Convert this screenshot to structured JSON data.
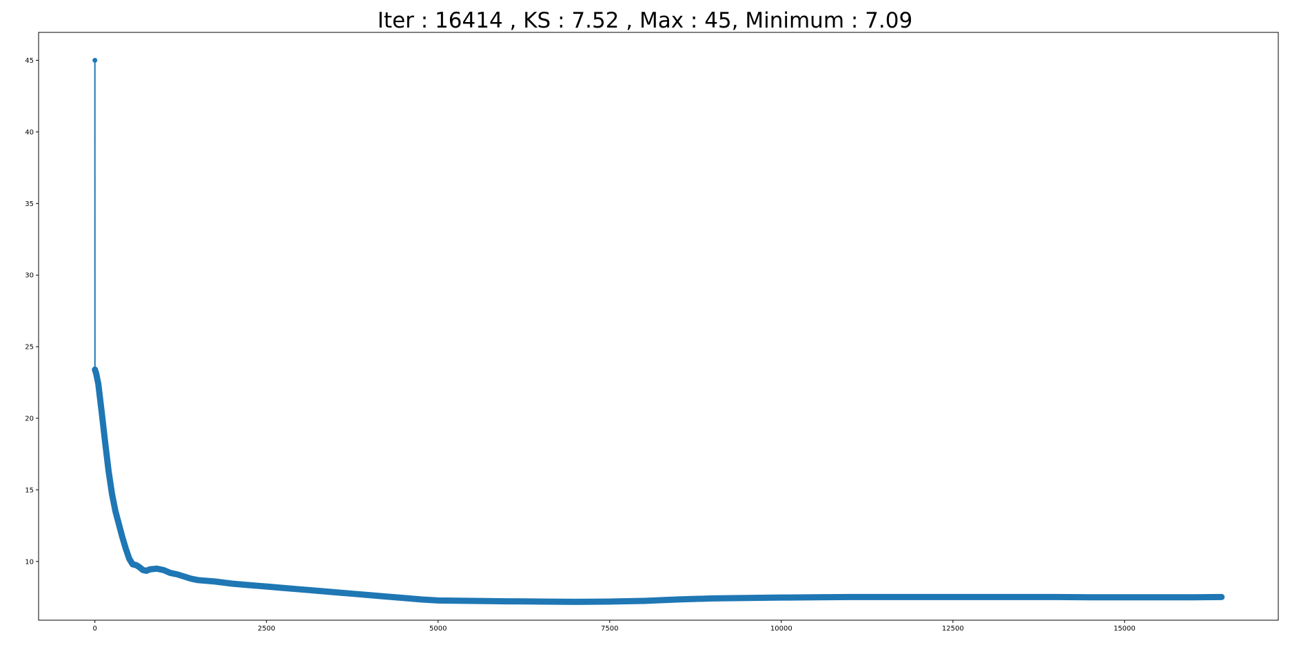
{
  "chart_data": {
    "type": "line",
    "title": "Iter : 16414 , KS : 7.52 , Max : 45,  Minimum : 7.09",
    "xlabel": "",
    "ylabel": "",
    "xlim": [
      -820,
      17240
    ],
    "ylim": [
      5.9,
      46.95
    ],
    "x_ticks": [
      0,
      2500,
      5000,
      7500,
      10000,
      12500,
      15000
    ],
    "x_tick_labels": [
      "0",
      "2500",
      "5000",
      "7500",
      "10000",
      "12500",
      "15000"
    ],
    "y_ticks": [
      10,
      15,
      20,
      25,
      30,
      35,
      40,
      45
    ],
    "y_tick_labels": [
      "10",
      "15",
      "20",
      "25",
      "30",
      "35",
      "40",
      "45"
    ],
    "grid": false,
    "legend": "none",
    "series": [
      {
        "color": "#1f77b4",
        "marker": "circle",
        "x": [
          0,
          1,
          20,
          50,
          100,
          150,
          200,
          250,
          300,
          350,
          400,
          450,
          500,
          550,
          600,
          650,
          700,
          750,
          800,
          900,
          1000,
          1100,
          1200,
          1300,
          1400,
          1500,
          1750,
          2000,
          2250,
          2500,
          2750,
          3000,
          3250,
          3500,
          3750,
          4000,
          4250,
          4500,
          4750,
          5000,
          5500,
          6000,
          6500,
          7000,
          7500,
          8000,
          8500,
          9000,
          9500,
          10000,
          10500,
          11000,
          11500,
          12000,
          12500,
          13000,
          13500,
          14000,
          14500,
          15000,
          15500,
          16000,
          16414
        ],
        "y": [
          45,
          23.4,
          23.1,
          22.4,
          20.4,
          18.3,
          16.3,
          14.7,
          13.5,
          12.6,
          11.7,
          10.9,
          10.2,
          9.8,
          9.75,
          9.6,
          9.4,
          9.35,
          9.45,
          9.5,
          9.4,
          9.2,
          9.1,
          8.95,
          8.8,
          8.7,
          8.6,
          8.45,
          8.35,
          8.25,
          8.15,
          8.05,
          7.95,
          7.85,
          7.75,
          7.65,
          7.55,
          7.45,
          7.35,
          7.28,
          7.25,
          7.22,
          7.2,
          7.18,
          7.2,
          7.25,
          7.35,
          7.42,
          7.45,
          7.48,
          7.5,
          7.52,
          7.52,
          7.52,
          7.52,
          7.52,
          7.52,
          7.52,
          7.5,
          7.5,
          7.5,
          7.5,
          7.52
        ]
      }
    ]
  }
}
